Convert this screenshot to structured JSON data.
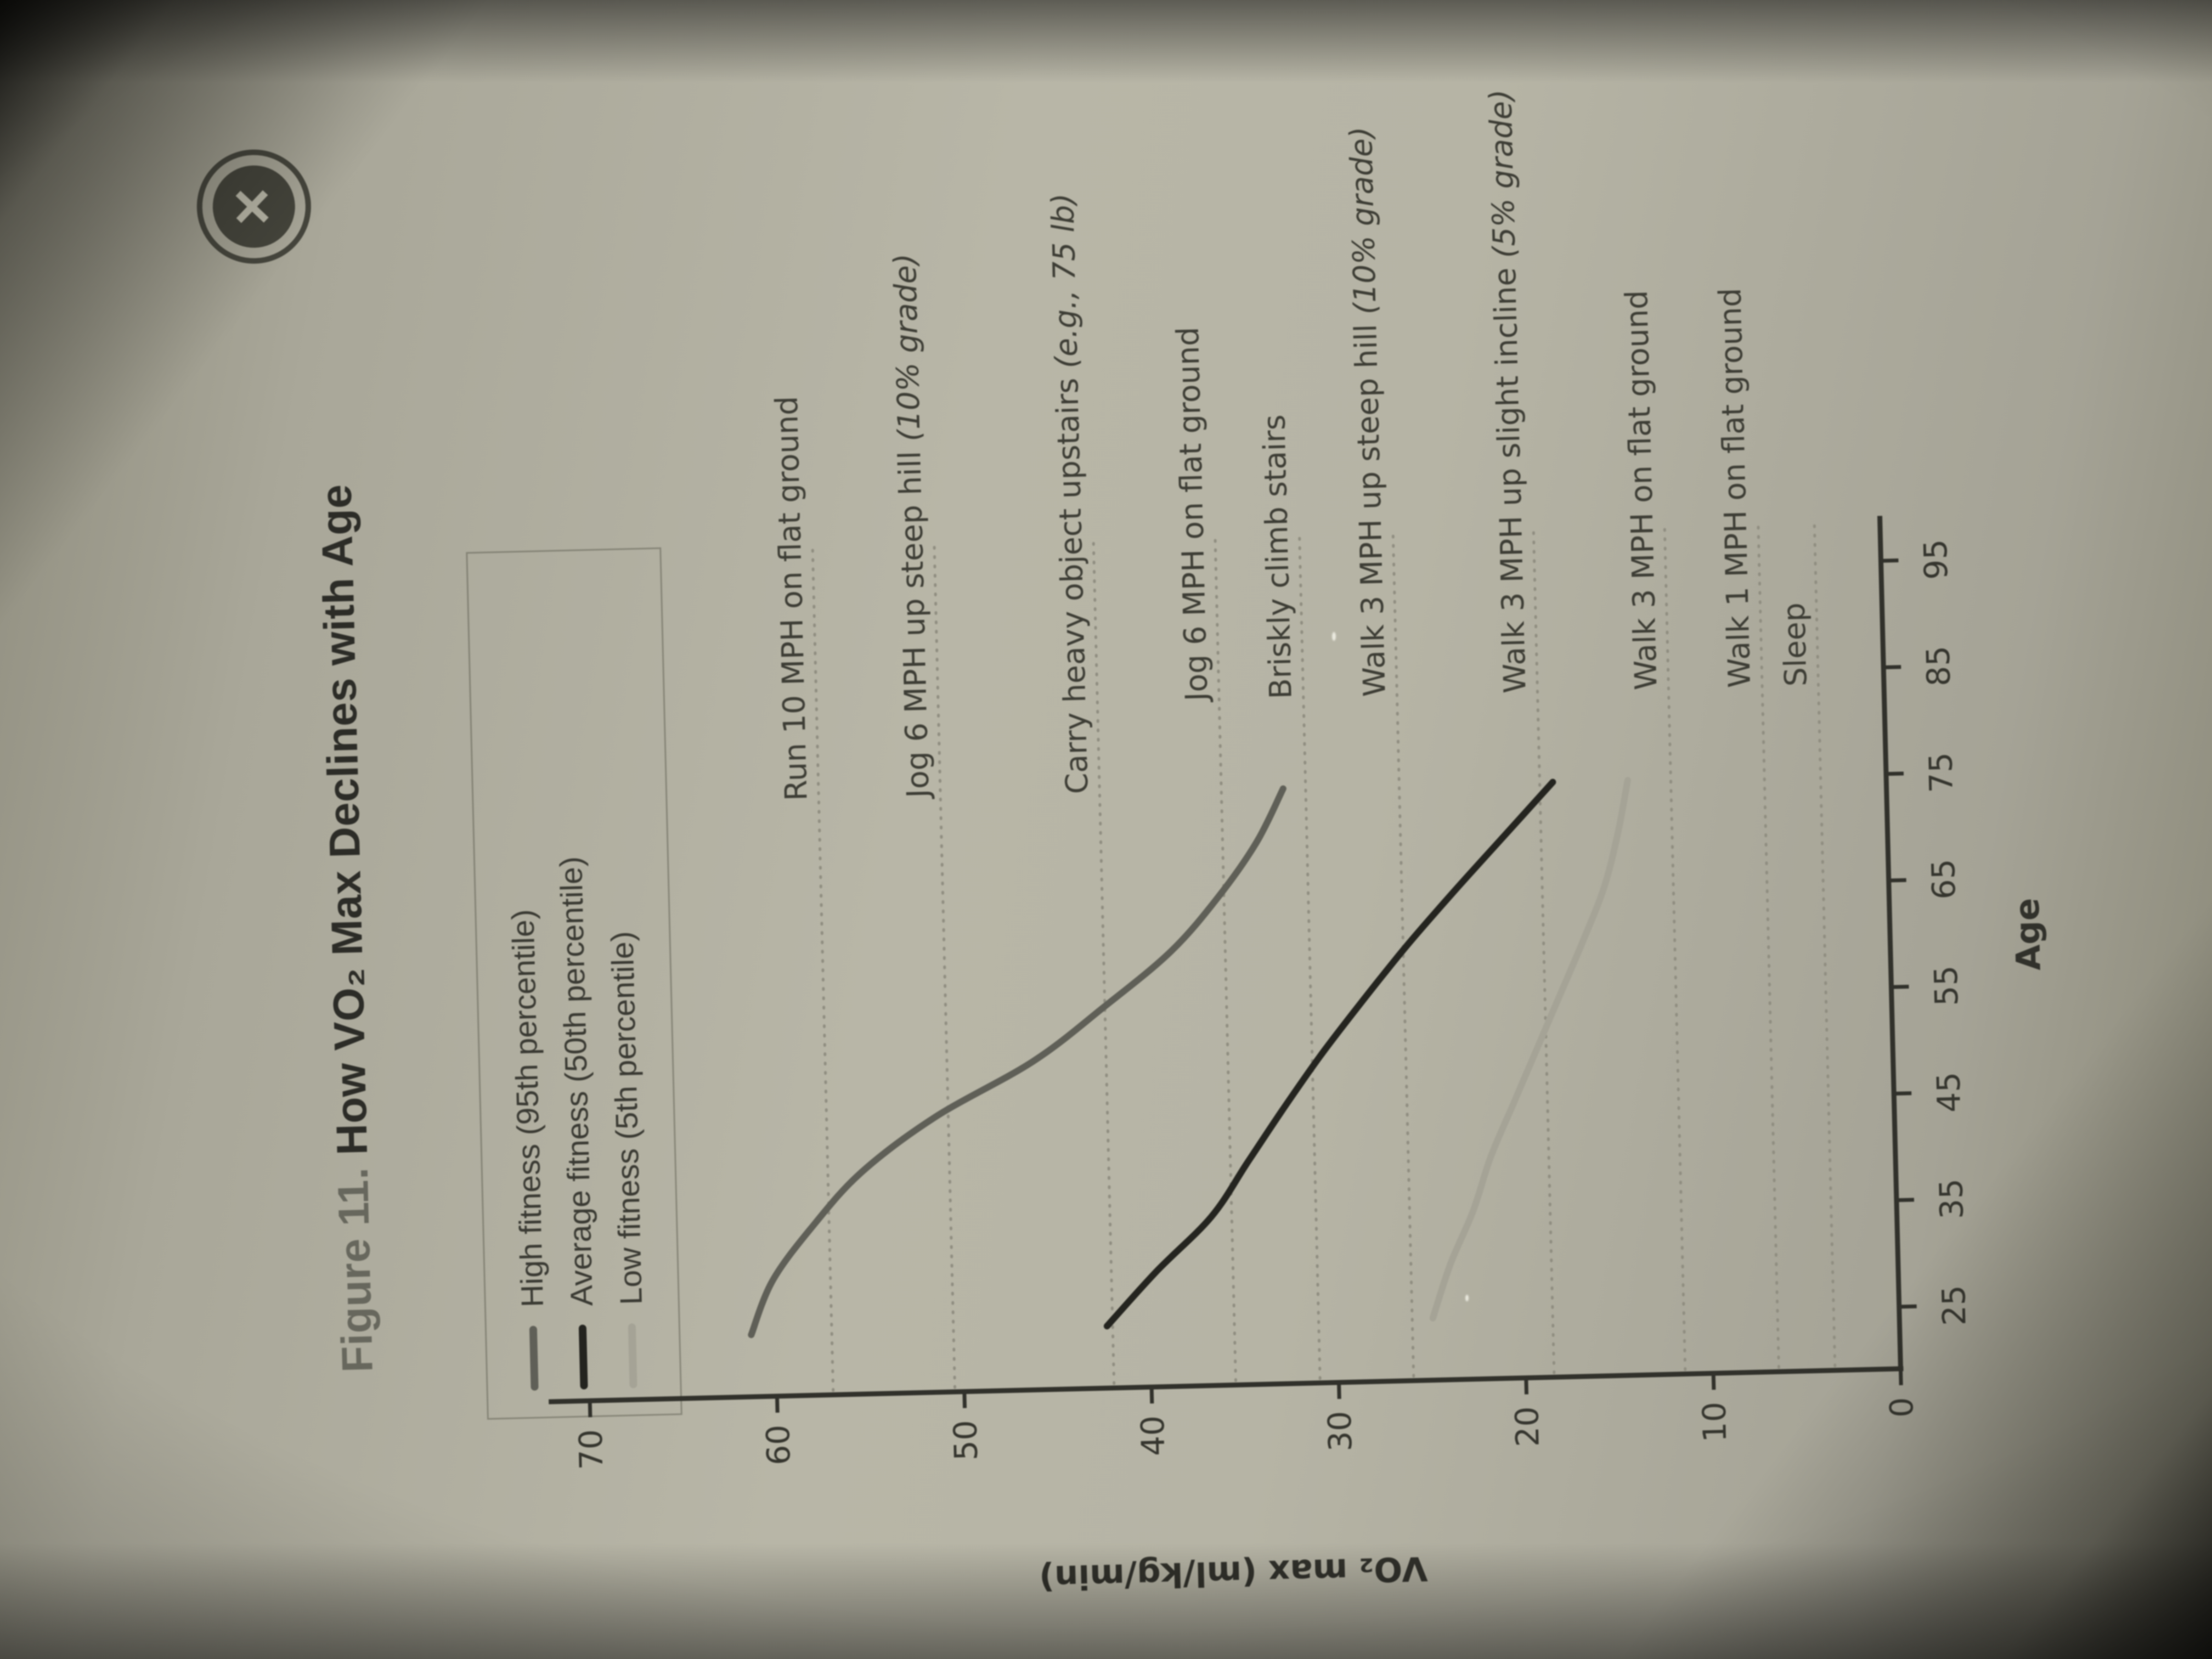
{
  "close_button": {
    "icon": "×"
  },
  "figure": {
    "title_prefix": "Figure 11.",
    "title_main": " How VO₂ Max Declines with Age"
  },
  "legend": {
    "items": [
      {
        "label": "High fitness (95th percentile)",
        "color": "#5f5f57"
      },
      {
        "label": "Average fitness (50th percentile)",
        "color": "#24241f"
      },
      {
        "label": "Low fitness (5th percentile)",
        "color": "#a5a396"
      }
    ]
  },
  "chart_data": {
    "type": "line",
    "title": "Figure 11. How VO₂ Max Declines with Age",
    "xlabel": "Age",
    "ylabel": "VO₂ max (ml/kg/min)",
    "x_ticks": [
      25,
      35,
      45,
      55,
      65,
      75,
      85,
      95
    ],
    "y_ticks": [
      0,
      10,
      20,
      30,
      40,
      50,
      60,
      70
    ],
    "xlim": [
      19,
      99
    ],
    "ylim": [
      0,
      72
    ],
    "grid": false,
    "legend_position": "top-left",
    "x": [
      25,
      30,
      35,
      40,
      45,
      50,
      55,
      60,
      65,
      70,
      75
    ],
    "series": [
      {
        "name": "High fitness (95th percentile)",
        "color": "#5f5f57",
        "values": [
          61.3,
          60.1,
          57.9,
          55.2,
          51.2,
          45.9,
          42.0,
          38.4,
          35.8,
          33.7,
          32.2
        ]
      },
      {
        "name": "Average fitness (50th percentile)",
        "color": "#24241f",
        "values": [
          42.3,
          39.6,
          36.6,
          34.6,
          32.6,
          30.5,
          28.2,
          25.8,
          23.2,
          20.5,
          17.8
        ]
      },
      {
        "name": "Low fitness (5th percentile)",
        "color": "#a5a396",
        "values": [
          24.9,
          23.9,
          22.6,
          21.6,
          20.3,
          19.0,
          17.7,
          16.4,
          15.2,
          14.4,
          13.8
        ]
      }
    ],
    "reference_lines": [
      {
        "vo2": 57.0,
        "label": "Run 10 MPH on flat ground",
        "note": "",
        "col": 0
      },
      {
        "vo2": 50.5,
        "label": "Jog 6 MPH up steep hill ",
        "note": "(10% grade)",
        "col": 0
      },
      {
        "vo2": 42.0,
        "label": "Carry heavy object upstairs ",
        "note": "(e.g., 75 lb)",
        "col": 0
      },
      {
        "vo2": 35.5,
        "label": "Jog 6 MPH on flat ground",
        "note": "",
        "col": 1
      },
      {
        "vo2": 31.0,
        "label": "Briskly climb stairs",
        "note": "",
        "col": 1
      },
      {
        "vo2": 26.0,
        "label": "Walk 3 MPH up steep hill ",
        "note": "(10% grade)",
        "col": 1
      },
      {
        "vo2": 18.5,
        "label": "Walk 3 MPH up slight incline ",
        "note": "(5% grade)",
        "col": 1
      },
      {
        "vo2": 11.5,
        "label": "Walk 3 MPH on flat ground",
        "note": "",
        "col": 1
      },
      {
        "vo2": 6.5,
        "label": "Walk 1 MPH on flat ground",
        "note": "",
        "col": 1
      },
      {
        "vo2": 3.5,
        "label": "Sleep",
        "note": "",
        "col": 1
      }
    ],
    "reference_line_color": "#908e81",
    "axis_color": "#31312b"
  }
}
